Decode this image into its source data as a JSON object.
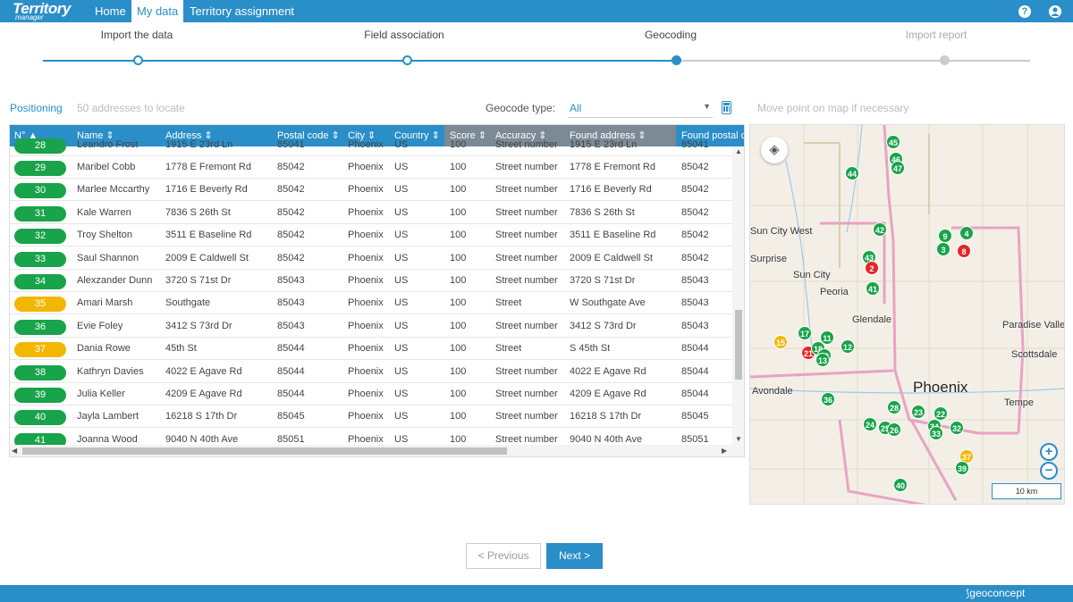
{
  "app": {
    "logo_main": "Territory",
    "logo_sub": "manager"
  },
  "nav": {
    "home": "Home",
    "mydata": "My data",
    "territory": "Territory assignment"
  },
  "topicons": {
    "help": "?",
    "user": "👤"
  },
  "steps": [
    {
      "label": "Import the data",
      "state": "done"
    },
    {
      "label": "Field association",
      "state": "done"
    },
    {
      "label": "Geocoding",
      "state": "current"
    },
    {
      "label": "Import report",
      "state": "todo"
    }
  ],
  "toolbar": {
    "positioning": "Positioning",
    "count": "50 addresses to locate",
    "geotype_label": "Geocode type:",
    "geotype_value": "All",
    "map_hint": "Move point on map if necessary"
  },
  "table": {
    "headers": [
      "N° ▲",
      "Name ⇕",
      "Address ⇕",
      "Postal code ⇕",
      "City ⇕",
      "Country ⇕",
      "Score ⇕",
      "Accuracy ⇕",
      "Found address ⇕",
      "Found postal c"
    ],
    "partial_row": {
      "no": "28",
      "name": "Leandro Frost",
      "address": "1915 E 23rd Ln",
      "postal": "85041",
      "city": "Phoenix",
      "country": "US",
      "score": "100",
      "accuracy": "Street number",
      "found": "1915 E 23rd Ln",
      "found_postal": "85041",
      "status": "green"
    },
    "rows": [
      {
        "no": "29",
        "name": "Maribel Cobb",
        "address": "1778 E Fremont Rd",
        "postal": "85042",
        "city": "Phoenix",
        "country": "US",
        "score": "100",
        "accuracy": "Street number",
        "found": "1778 E Fremont Rd",
        "found_postal": "85042",
        "status": "green"
      },
      {
        "no": "30",
        "name": "Marlee Mccarthy",
        "address": "1716 E Beverly Rd",
        "postal": "85042",
        "city": "Phoenix",
        "country": "US",
        "score": "100",
        "accuracy": "Street number",
        "found": "1716 E Beverly Rd",
        "found_postal": "85042",
        "status": "green"
      },
      {
        "no": "31",
        "name": "Kale Warren",
        "address": "7836 S 26th St",
        "postal": "85042",
        "city": "Phoenix",
        "country": "US",
        "score": "100",
        "accuracy": "Street number",
        "found": "7836 S 26th St",
        "found_postal": "85042",
        "status": "green"
      },
      {
        "no": "32",
        "name": "Troy Shelton",
        "address": "3511 E Baseline Rd",
        "postal": "85042",
        "city": "Phoenix",
        "country": "US",
        "score": "100",
        "accuracy": "Street number",
        "found": "3511 E Baseline Rd",
        "found_postal": "85042",
        "status": "green"
      },
      {
        "no": "33",
        "name": "Saul Shannon",
        "address": "2009 E Caldwell St",
        "postal": "85042",
        "city": "Phoenix",
        "country": "US",
        "score": "100",
        "accuracy": "Street number",
        "found": "2009 E Caldwell St",
        "found_postal": "85042",
        "status": "green"
      },
      {
        "no": "34",
        "name": "Alexzander Dunn",
        "address": "3720 S 71st Dr",
        "postal": "85043",
        "city": "Phoenix",
        "country": "US",
        "score": "100",
        "accuracy": "Street number",
        "found": "3720 S 71st Dr",
        "found_postal": "85043",
        "status": "green"
      },
      {
        "no": "35",
        "name": "Amari Marsh",
        "address": "Southgate",
        "postal": "85043",
        "city": "Phoenix",
        "country": "US",
        "score": "100",
        "accuracy": "Street",
        "found": "W Southgate Ave",
        "found_postal": "85043",
        "status": "yellow"
      },
      {
        "no": "36",
        "name": "Evie Foley",
        "address": "3412 S 73rd Dr",
        "postal": "85043",
        "city": "Phoenix",
        "country": "US",
        "score": "100",
        "accuracy": "Street number",
        "found": "3412 S 73rd Dr",
        "found_postal": "85043",
        "status": "green"
      },
      {
        "no": "37",
        "name": "Dania Rowe",
        "address": "45th St",
        "postal": "85044",
        "city": "Phoenix",
        "country": "US",
        "score": "100",
        "accuracy": "Street",
        "found": "S 45th St",
        "found_postal": "85044",
        "status": "yellow"
      },
      {
        "no": "38",
        "name": "Kathryn Davies",
        "address": "4022 E Agave Rd",
        "postal": "85044",
        "city": "Phoenix",
        "country": "US",
        "score": "100",
        "accuracy": "Street number",
        "found": "4022 E Agave Rd",
        "found_postal": "85044",
        "status": "green"
      },
      {
        "no": "39",
        "name": "Julia Keller",
        "address": "4209 E Agave Rd",
        "postal": "85044",
        "city": "Phoenix",
        "country": "US",
        "score": "100",
        "accuracy": "Street number",
        "found": "4209 E Agave Rd",
        "found_postal": "85044",
        "status": "green"
      },
      {
        "no": "40",
        "name": "Jayla Lambert",
        "address": "16218 S 17th Dr",
        "postal": "85045",
        "city": "Phoenix",
        "country": "US",
        "score": "100",
        "accuracy": "Street number",
        "found": "16218 S 17th Dr",
        "found_postal": "85045",
        "status": "green"
      },
      {
        "no": "41",
        "name": "Joanna Wood",
        "address": "9040 N 40th Ave",
        "postal": "85051",
        "city": "Phoenix",
        "country": "US",
        "score": "100",
        "accuracy": "Street number",
        "found": "9040 N 40th Ave",
        "found_postal": "85051",
        "status": "green"
      }
    ]
  },
  "map": {
    "places": [
      "Sun City West",
      "Surprise",
      "Sun City",
      "Peoria",
      "Glendale",
      "Avondale",
      "Phoenix",
      "Tempe",
      "Scottsdale",
      "Paradise Valley"
    ],
    "pins": [
      {
        "label": "45",
        "c": "g"
      },
      {
        "label": "46",
        "c": "g"
      },
      {
        "label": "47",
        "c": "g"
      },
      {
        "label": "44",
        "c": "g"
      },
      {
        "label": "42",
        "c": "g"
      },
      {
        "label": "9",
        "c": "g"
      },
      {
        "label": "4",
        "c": "g"
      },
      {
        "label": "3",
        "c": "g"
      },
      {
        "label": "8",
        "c": "r"
      },
      {
        "label": "43",
        "c": "g"
      },
      {
        "label": "2",
        "c": "r"
      },
      {
        "label": "41",
        "c": "g"
      },
      {
        "label": "17",
        "c": "g"
      },
      {
        "label": "11",
        "c": "g"
      },
      {
        "label": "15",
        "c": "y"
      },
      {
        "label": "21",
        "c": "r"
      },
      {
        "label": "18",
        "c": "g"
      },
      {
        "label": "20",
        "c": "g"
      },
      {
        "label": "13",
        "c": "g"
      },
      {
        "label": "12",
        "c": "g"
      },
      {
        "label": "36",
        "c": "g"
      },
      {
        "label": "28",
        "c": "g"
      },
      {
        "label": "23",
        "c": "g"
      },
      {
        "label": "22",
        "c": "g"
      },
      {
        "label": "24",
        "c": "g"
      },
      {
        "label": "25",
        "c": "g"
      },
      {
        "label": "26",
        "c": "g"
      },
      {
        "label": "34",
        "c": "g"
      },
      {
        "label": "33",
        "c": "g"
      },
      {
        "label": "32",
        "c": "g"
      },
      {
        "label": "37",
        "c": "y"
      },
      {
        "label": "39",
        "c": "g"
      },
      {
        "label": "40",
        "c": "g"
      }
    ],
    "scale": "10 km"
  },
  "buttons": {
    "previous": "< Previous",
    "next": "Next >"
  },
  "footer": {
    "brand": "geoconcept"
  },
  "colors": {
    "accent": "#2a8ec8",
    "green": "#19a34a",
    "yellow": "#f2b705",
    "red": "#e32727"
  }
}
